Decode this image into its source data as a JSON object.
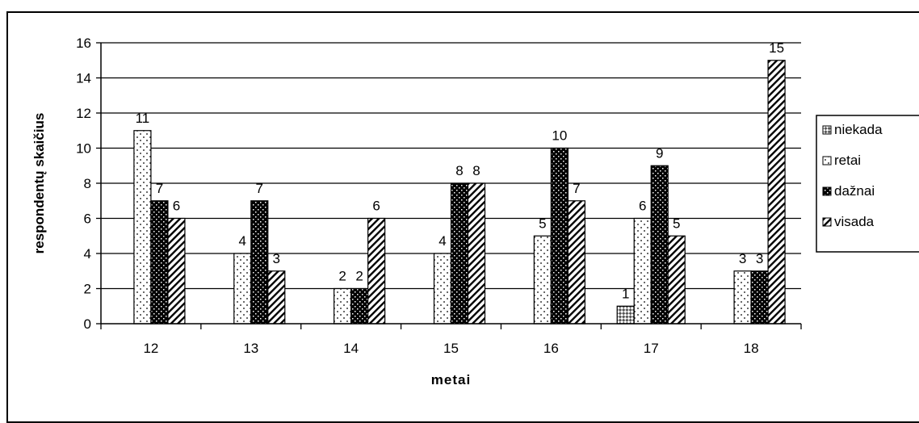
{
  "chart_data": {
    "type": "bar",
    "title": "",
    "xlabel": "metai",
    "ylabel": "respondentų skaičius",
    "categories": [
      "12",
      "13",
      "14",
      "15",
      "16",
      "17",
      "18"
    ],
    "ylim": [
      0,
      16
    ],
    "yticks": [
      0,
      2,
      4,
      6,
      8,
      10,
      12,
      14,
      16
    ],
    "grid": "horizontal",
    "legend_position": "right",
    "series": [
      {
        "name": "niekada",
        "pattern": "checker-diagonal",
        "values": [
          0,
          0,
          0,
          0,
          0,
          1,
          0
        ],
        "labels": [
          "",
          "",
          "",
          "",
          "",
          "1",
          ""
        ]
      },
      {
        "name": "retai",
        "pattern": "dots",
        "values": [
          11,
          4,
          2,
          4,
          5,
          6,
          3
        ],
        "labels": [
          "11",
          "4",
          "2",
          "4",
          "5",
          "6",
          "3"
        ]
      },
      {
        "name": "dažnai",
        "pattern": "dark-checker",
        "values": [
          7,
          7,
          2,
          8,
          10,
          9,
          3
        ],
        "labels": [
          "7",
          "7",
          "2",
          "8",
          "10",
          "9",
          "3"
        ]
      },
      {
        "name": "visada",
        "pattern": "diagonal-stripes",
        "values": [
          6,
          3,
          6,
          8,
          7,
          5,
          15
        ],
        "labels": [
          "6",
          "3",
          "6",
          "8",
          "7",
          "5",
          "15"
        ]
      }
    ]
  }
}
